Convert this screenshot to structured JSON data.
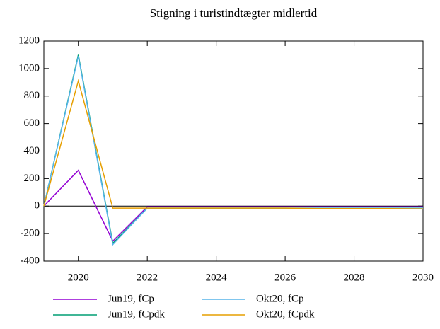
{
  "chart_data": {
    "type": "line",
    "title": "Stigning i turistindtægter midlertid",
    "x": [
      2019,
      2020,
      2021,
      2022,
      2023,
      2024,
      2025,
      2026,
      2027,
      2028,
      2029,
      2030
    ],
    "series": [
      {
        "name": "Jun19, fCp",
        "color": "#9400d3",
        "values": [
          0,
          260,
          -255,
          -5,
          -5,
          -5,
          -5,
          -5,
          -5,
          -5,
          -5,
          -5
        ]
      },
      {
        "name": "Jun19, fCpdk",
        "color": "#009e73",
        "values": [
          0,
          1100,
          -270,
          -15,
          -15,
          -15,
          -15,
          -15,
          -15,
          -15,
          -15,
          -15
        ]
      },
      {
        "name": "Okt20, fCp",
        "color": "#56b4e9",
        "values": [
          0,
          1090,
          -280,
          -15,
          -15,
          -15,
          -15,
          -15,
          -15,
          -15,
          -15,
          -15
        ]
      },
      {
        "name": "Okt20, fCpdk",
        "color": "#e69f00",
        "values": [
          0,
          910,
          -15,
          -15,
          -15,
          -15,
          -15,
          -15,
          -18,
          -18,
          -18,
          -20
        ]
      }
    ],
    "xlim": [
      2019,
      2030
    ],
    "xticks": [
      2020,
      2022,
      2024,
      2026,
      2028,
      2030
    ],
    "ylim": [
      -400,
      1200
    ],
    "yticks": [
      -400,
      -200,
      0,
      200,
      400,
      600,
      800,
      1000,
      1200
    ]
  }
}
